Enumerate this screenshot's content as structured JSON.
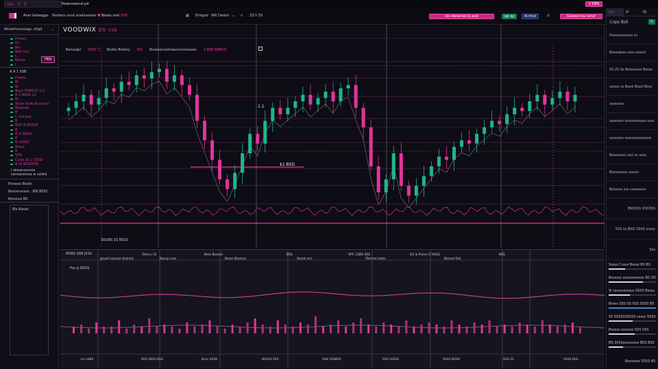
{
  "topbar": {
    "tab_labels": [
      "lvv",
      "ll",
      "ll"
    ],
    "title": "Nownxatsnd.yst"
  },
  "header": {
    "brand": "Aner beleagge",
    "nav": "Pavbors ssnd sssdnansesr",
    "ticker": "Booss ssnl",
    "ticker_change": "SVB",
    "symbol_select": "Erlogsd",
    "market": "WR Dedsd",
    "time": "33:5 5S"
  },
  "header_buttons": {
    "primary": "Isls deransie   kj asst",
    "green": "sgl ap",
    "blue": "Acrtlsd",
    "alert": "Garese ksv ssnsr",
    "account": "1 DER"
  },
  "colors": {
    "accent": "#e0359b",
    "up": "#1fb58f",
    "down": "#e0359b",
    "background": "#0d0b12"
  },
  "sidebar": {
    "section_title": "Atnanhsncsssgs .shgd",
    "items": [
      "Psnars",
      "lts",
      "Bls",
      "Bdk  nsd",
      "I...",
      "Bsvsa",
      "I"
    ],
    "badge": "TBSI",
    "group_title": "A A 1 SSB",
    "watchlist": [
      "Desds",
      "Bl",
      "Bl",
      "Bsun PNBSSS 1/1",
      "B 1 BBSS 11",
      "Bl ....",
      "Wsse Bsde Bsssnsd",
      "Bsssnsd",
      "B",
      "C  lssl  Jsss",
      "B",
      "BSS  lS BSSSB",
      "B",
      "B 2l BBSS",
      "B",
      "B LSSSS",
      "Bssss",
      "B",
      "SSB",
      "Cssle  aS 1 SSSD",
      "B lsl BSSSSSS"
    ],
    "footer_items": [
      "l  alssanssnsss",
      "ssnsasssnsa  w sslstd"
    ],
    "summary_title": "Psnssss  Bsset",
    "summary_value_label": "Bssnsnsssss  :",
    "summary_value": "BSI BSSC",
    "summary_extra": "Bsnsnss  BS",
    "panel_title": "Bls Bsssd"
  },
  "main_chart": {
    "title": "VOODWIX",
    "subtitle": "DS",
    "subtitle2": "SSB",
    "legend": {
      "label": "Banssgsl",
      "v1": "SNST 2",
      "name": "Bodss Bssbsy",
      "v2": "BSI",
      "desc": "Bsasnsnssstsasssnsnsssass",
      "v3": "$ BSB BBBSD"
    },
    "price_marker": "$1 BSD",
    "marker2": "1.1",
    "bottom_label": "BSSBS SS BSSD"
  },
  "chart_data": {
    "type": "candlestick",
    "closes": [
      150,
      160,
      170,
      155,
      165,
      180,
      175,
      190,
      185,
      200,
      195,
      205,
      210,
      190,
      200,
      185,
      170,
      130,
      100,
      70,
      40,
      25,
      50,
      80,
      110,
      95,
      130,
      150,
      140,
      150,
      160,
      170,
      155,
      165,
      175,
      160,
      180,
      185,
      150,
      120,
      60,
      20,
      40,
      80,
      30,
      15,
      30,
      45,
      60,
      75,
      70,
      90,
      100,
      95,
      110,
      120,
      130,
      125,
      140,
      150,
      145,
      160,
      170,
      155,
      165,
      175,
      160,
      170
    ],
    "volume": [
      2,
      3,
      1,
      4,
      2,
      2,
      5,
      1,
      3,
      2,
      6,
      2,
      3,
      2,
      1,
      4,
      2,
      3,
      5,
      2,
      1,
      3,
      2,
      4,
      6,
      3,
      2,
      5,
      3,
      2,
      4,
      3,
      7,
      2,
      3,
      5,
      2,
      4,
      6,
      3,
      2,
      4,
      3,
      2,
      5,
      2,
      3,
      4,
      3,
      2,
      5,
      3,
      2,
      4,
      3,
      5,
      2,
      3,
      2,
      4,
      3,
      2,
      5,
      3,
      2,
      3,
      4,
      2
    ]
  },
  "lower_panel": {
    "title": "MSBS SSB JSSS",
    "subtitle": "Pss g lSSSS",
    "cols": [
      "gsvsd ssssnsl slssnsd",
      "Dsns  s Sl",
      "Bsnsp  ssss",
      "Bsss Bssssd",
      "Bssss Bssssss",
      "BSS",
      "Sssssl sns",
      "VPC 1SBS SSS",
      "Tbsnsd ssdss",
      "Q1 & Pvsns 2 VSSQ",
      "Bssnsd Sst",
      "BSS"
    ],
    "footer": [
      "lss sSBS",
      "BSS SBSS BSS",
      "Bsss SSSB",
      "BSSSS SSS",
      "SSB SSSBSS",
      "SSS SSSSS",
      "SSSS BSSB",
      "SSS SS",
      "SSSS BSS"
    ]
  },
  "right_panel": {
    "tabs": [
      "lyv",
      "lll",
      "Ql"
    ],
    "title": "Cnps Bsll",
    "rows": [
      "Pssssssssssss ss",
      "Bssssbsss ssss sssssl",
      "SS 2S Ss Bssssssss Bssss",
      "sssssl ss Bsssl Bsssl Bsss",
      "ssssssss",
      "ssssssss ssssssssssss ssss",
      "ssssssss  sssssssssssssss",
      "Bssssssss sssl ss ssss",
      "Bsssssssss  sssssl",
      "Bssssss sss sssssssss",
      "BSSSSS VSSSSS",
      "SSS  ss  BSSl SSSS  ssssy",
      "Sss"
    ],
    "progress": [
      {
        "label": "Sssss Cssss Bssss  BS BS",
        "value": 0.35
      },
      {
        "label": "Bssssss  ssssssssssss BS SSS",
        "value": 0.72
      },
      {
        "label": "Sl ssssssssssss  SSSS Bssss",
        "value": 0.45
      },
      {
        "label": "Bssss SSS SS SSS SSSS BS",
        "value": 1.0
      },
      {
        "label": "SS SSSSSSSSSS sssss SSSSB",
        "value": 0.5
      },
      {
        "label": "Bsssss  sssssss  SSS SSS",
        "value": 0.55
      },
      {
        "label": "BS SSSSsssssssss  BSS BSS",
        "value": 0.3
      }
    ],
    "footer": "Bsssssss SSSS BS"
  }
}
